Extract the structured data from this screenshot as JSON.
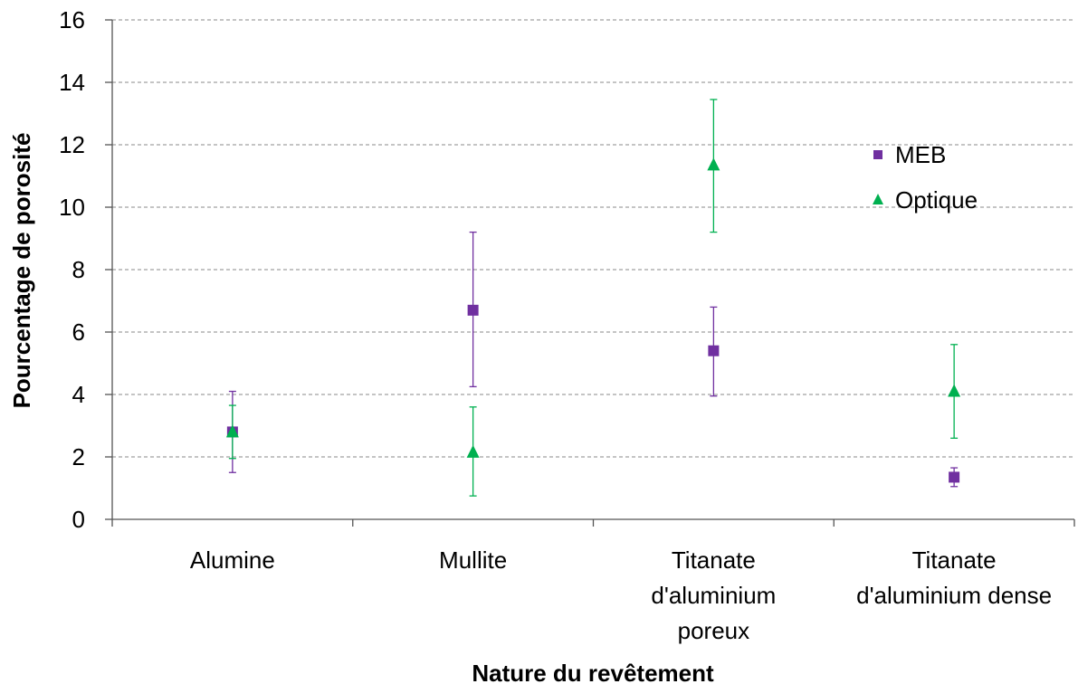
{
  "chart_data": {
    "type": "scatter",
    "categories": [
      "Alumine",
      "Mullite",
      "Titanate\nd'aluminium\nporeux",
      "Titanate\nd'aluminium dense"
    ],
    "xlabel": "Nature du revêtement",
    "ylabel": "Pourcentage de porosité",
    "ylim": [
      0,
      16
    ],
    "yticks": [
      0,
      2,
      4,
      6,
      8,
      10,
      12,
      14,
      16
    ],
    "grid": true,
    "legend_position": "top-right",
    "series": [
      {
        "name": "MEB",
        "marker": "square",
        "color": "#7030a0",
        "values": [
          2.8,
          6.7,
          5.4,
          1.35
        ],
        "err_low": [
          1.5,
          4.25,
          3.95,
          1.05
        ],
        "err_high": [
          4.1,
          9.2,
          6.8,
          1.65
        ]
      },
      {
        "name": "Optique",
        "marker": "triangle",
        "color": "#00b050",
        "values": [
          2.8,
          2.15,
          11.35,
          4.1
        ],
        "err_low": [
          1.95,
          0.75,
          9.2,
          2.6
        ],
        "err_high": [
          3.65,
          3.6,
          13.45,
          5.6
        ]
      }
    ]
  }
}
